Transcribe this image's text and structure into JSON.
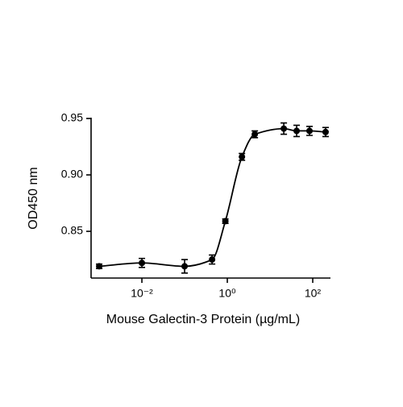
{
  "chart_data": {
    "type": "scatter",
    "xlabel": "Mouse Galectin-3 Protein (µg/mL)",
    "ylabel": "OD450 nm",
    "x": [
      0.001,
      0.01,
      0.1,
      0.44,
      0.9,
      2.2,
      4.4,
      21,
      42,
      84,
      200
    ],
    "series": [
      {
        "color": "#000000",
        "values": [
          0.819,
          0.822,
          0.819,
          0.825,
          0.859,
          0.916,
          0.936,
          0.941,
          0.939,
          0.939,
          0.938
        ],
        "errors": [
          0.002,
          0.004,
          0.006,
          0.004,
          0.002,
          0.003,
          0.003,
          0.005,
          0.005,
          0.004,
          0.004
        ]
      }
    ],
    "xscale": "log",
    "xlim": [
      0.000646,
      260
    ],
    "ylim": [
      0.8086,
      0.95
    ],
    "xticks": [
      {
        "value": 0.01,
        "label": "10⁻²"
      },
      {
        "value": 1,
        "label": "10⁰"
      },
      {
        "value": 100,
        "label": "10²"
      }
    ],
    "yticks": [
      0.85,
      {
        "value": 0.9,
        "label": "0.90"
      },
      0.95
    ]
  }
}
